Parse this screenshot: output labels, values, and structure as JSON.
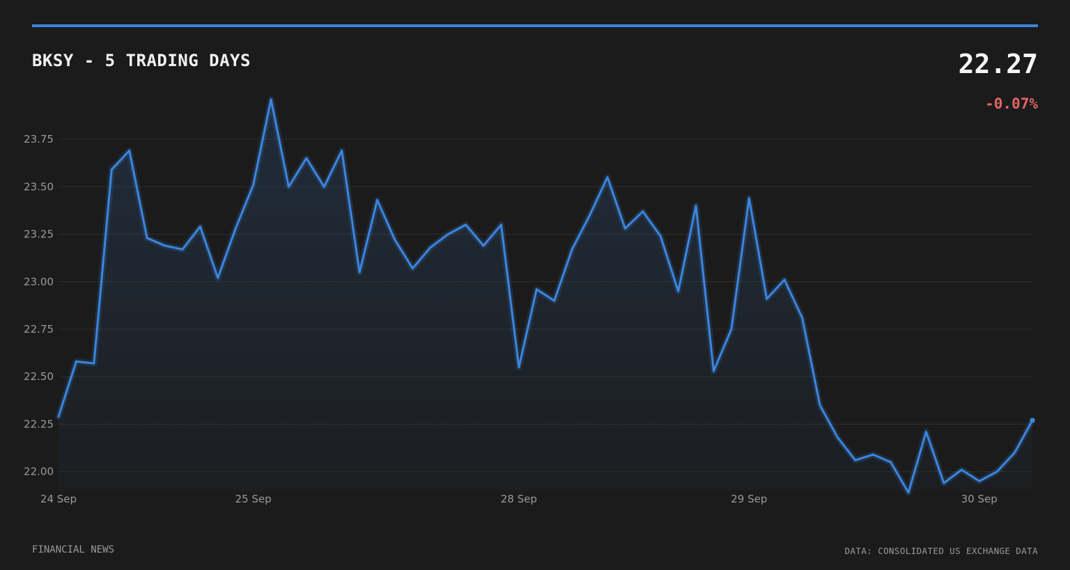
{
  "header": {
    "title": "BKSY - 5 TRADING DAYS",
    "price": "22.27",
    "change": "-0.07%"
  },
  "footer": {
    "source_left": "FINANCIAL NEWS",
    "source_right": "DATA: CONSOLIDATED US EXCHANGE DATA"
  },
  "colors": {
    "accent": "#3b86e0",
    "line": "#3b86e0",
    "negative": "#e06666",
    "background": "#1b1b1b",
    "grid": "#2e2e2e"
  },
  "chart_data": {
    "type": "area",
    "title": "BKSY - 5 TRADING DAYS",
    "xlabel": "",
    "ylabel": "",
    "ylim": [
      21.9,
      23.97
    ],
    "yticks": [
      "22.00",
      "22.25",
      "22.50",
      "22.75",
      "23.00",
      "23.25",
      "23.50",
      "23.75"
    ],
    "xticks": [
      {
        "label": "24 Sep",
        "index": 0
      },
      {
        "label": "25 Sep",
        "index": 11
      },
      {
        "label": "28 Sep",
        "index": 26
      },
      {
        "label": "29 Sep",
        "index": 39
      },
      {
        "label": "30 Sep",
        "index": 52
      }
    ],
    "grid": true,
    "legend": "none",
    "series": [
      {
        "values": [
          22.29,
          22.58,
          22.57,
          23.59,
          23.69,
          23.23,
          23.19,
          23.17,
          23.29,
          23.02,
          23.28,
          23.51,
          23.96,
          23.5,
          23.65,
          23.5,
          23.69,
          23.05,
          23.43,
          23.22,
          23.07,
          23.18,
          23.25,
          23.3,
          23.19,
          23.3,
          22.55,
          22.96,
          22.9,
          23.17,
          23.35,
          23.55,
          23.28,
          23.37,
          23.24,
          22.95,
          23.4,
          22.53,
          22.75,
          23.44,
          22.91,
          23.01,
          22.81,
          22.35,
          22.18,
          22.06,
          22.09,
          22.05,
          21.89,
          22.21,
          21.94,
          22.01,
          21.95,
          22.0,
          22.1,
          22.27
        ]
      }
    ]
  }
}
